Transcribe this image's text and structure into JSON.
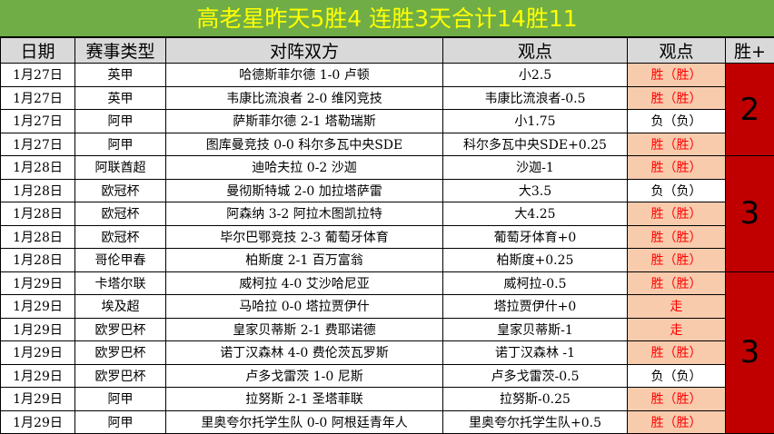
{
  "title": "高老星昨天5胜4  连胜3天合计14胜11",
  "headers": [
    "日期",
    "赛事类型",
    "对阵双方",
    "观点",
    "观点",
    "胜+"
  ],
  "colors": {
    "title_bg": "#70AD47",
    "title_text": "#FFFF00",
    "header_bg": "#D9D9D9",
    "win_bg": "#F8CBAD",
    "win_text": "#FF0000",
    "group_bg": "#C00000"
  },
  "rows": [
    {
      "date": "1月27日",
      "league": "英甲",
      "match": "哈德斯菲尔德 1-0 卢顿",
      "pick": "小2.5",
      "result": "胜（胜）",
      "win": true
    },
    {
      "date": "1月27日",
      "league": "英甲",
      "match": "韦康比流浪者 2-0 维冈竞技",
      "pick": "韦康比流浪者-0.5",
      "result": "胜（胜）",
      "win": true
    },
    {
      "date": "1月27日",
      "league": "阿甲",
      "match": "萨斯菲尔德 2-1 塔勒瑞斯",
      "pick": "小1.75",
      "result": "负（负）",
      "win": false
    },
    {
      "date": "1月27日",
      "league": "阿甲",
      "match": "图库曼竞技 0-0 科尔多瓦中央SDE",
      "pick": "科尔多瓦中央SDE+0.25",
      "result": "胜（胜）",
      "win": true
    },
    {
      "date": "1月28日",
      "league": "阿联酋超",
      "match": "迪哈夫拉 0-2 沙迦",
      "pick": "沙迦-1",
      "result": "胜（胜）",
      "win": true
    },
    {
      "date": "1月28日",
      "league": "欧冠杯",
      "match": "曼彻斯特城 2-0 加拉塔萨雷",
      "pick": "大3.5",
      "result": "负（负）",
      "win": false
    },
    {
      "date": "1月28日",
      "league": "欧冠杯",
      "match": "阿森纳 3-2 阿拉木图凯拉特",
      "pick": "大4.25",
      "result": "胜（胜）",
      "win": true
    },
    {
      "date": "1月28日",
      "league": "欧冠杯",
      "match": "毕尔巴鄂竞技 2-3 葡萄牙体育",
      "pick": "葡萄牙体育+0",
      "result": "胜（胜）",
      "win": true
    },
    {
      "date": "1月28日",
      "league": "哥伦甲春",
      "match": "柏斯度 2-1 百万富翁",
      "pick": "柏斯度+0.25",
      "result": "胜（胜）",
      "win": true
    },
    {
      "date": "1月29日",
      "league": "卡塔尔联",
      "match": "威柯拉 4-0 艾沙哈尼亚",
      "pick": "威柯拉-0.5",
      "result": "胜（胜）",
      "win": true
    },
    {
      "date": "1月29日",
      "league": "埃及超",
      "match": "马哈拉 0-0 塔拉贾伊什",
      "pick": "塔拉贾伊什+0",
      "result": "走",
      "win": true
    },
    {
      "date": "1月29日",
      "league": "欧罗巴杯",
      "match": "皇家贝蒂斯 2-1 费耶诺德",
      "pick": "皇家贝蒂斯-1",
      "result": "走",
      "win": true
    },
    {
      "date": "1月29日",
      "league": "欧罗巴杯",
      "match": "诺丁汉森林 4-0 费伦茨瓦罗斯",
      "pick": "诺丁汉森林 -1",
      "result": "胜（胜）",
      "win": true
    },
    {
      "date": "1月29日",
      "league": "欧罗巴杯",
      "match": "卢多戈雷茨 1-0 尼斯",
      "pick": "卢多戈雷茨-0.5",
      "result": "负（负）",
      "win": false
    },
    {
      "date": "1月29日",
      "league": "阿甲",
      "match": "拉努斯 2-1 圣塔菲联",
      "pick": "拉努斯-0.25",
      "result": "胜（胜）",
      "win": true
    },
    {
      "date": "1月29日",
      "league": "阿甲",
      "match": "里奥夸尔托学生队 0-0 阿根廷青年人",
      "pick": "里奥夸尔托学生队+0.5",
      "result": "胜（胜）",
      "win": true
    }
  ],
  "groups": [
    {
      "value": "2",
      "rows": 4
    },
    {
      "value": "3",
      "rows": 5
    },
    {
      "value": "3",
      "rows": 7
    }
  ]
}
